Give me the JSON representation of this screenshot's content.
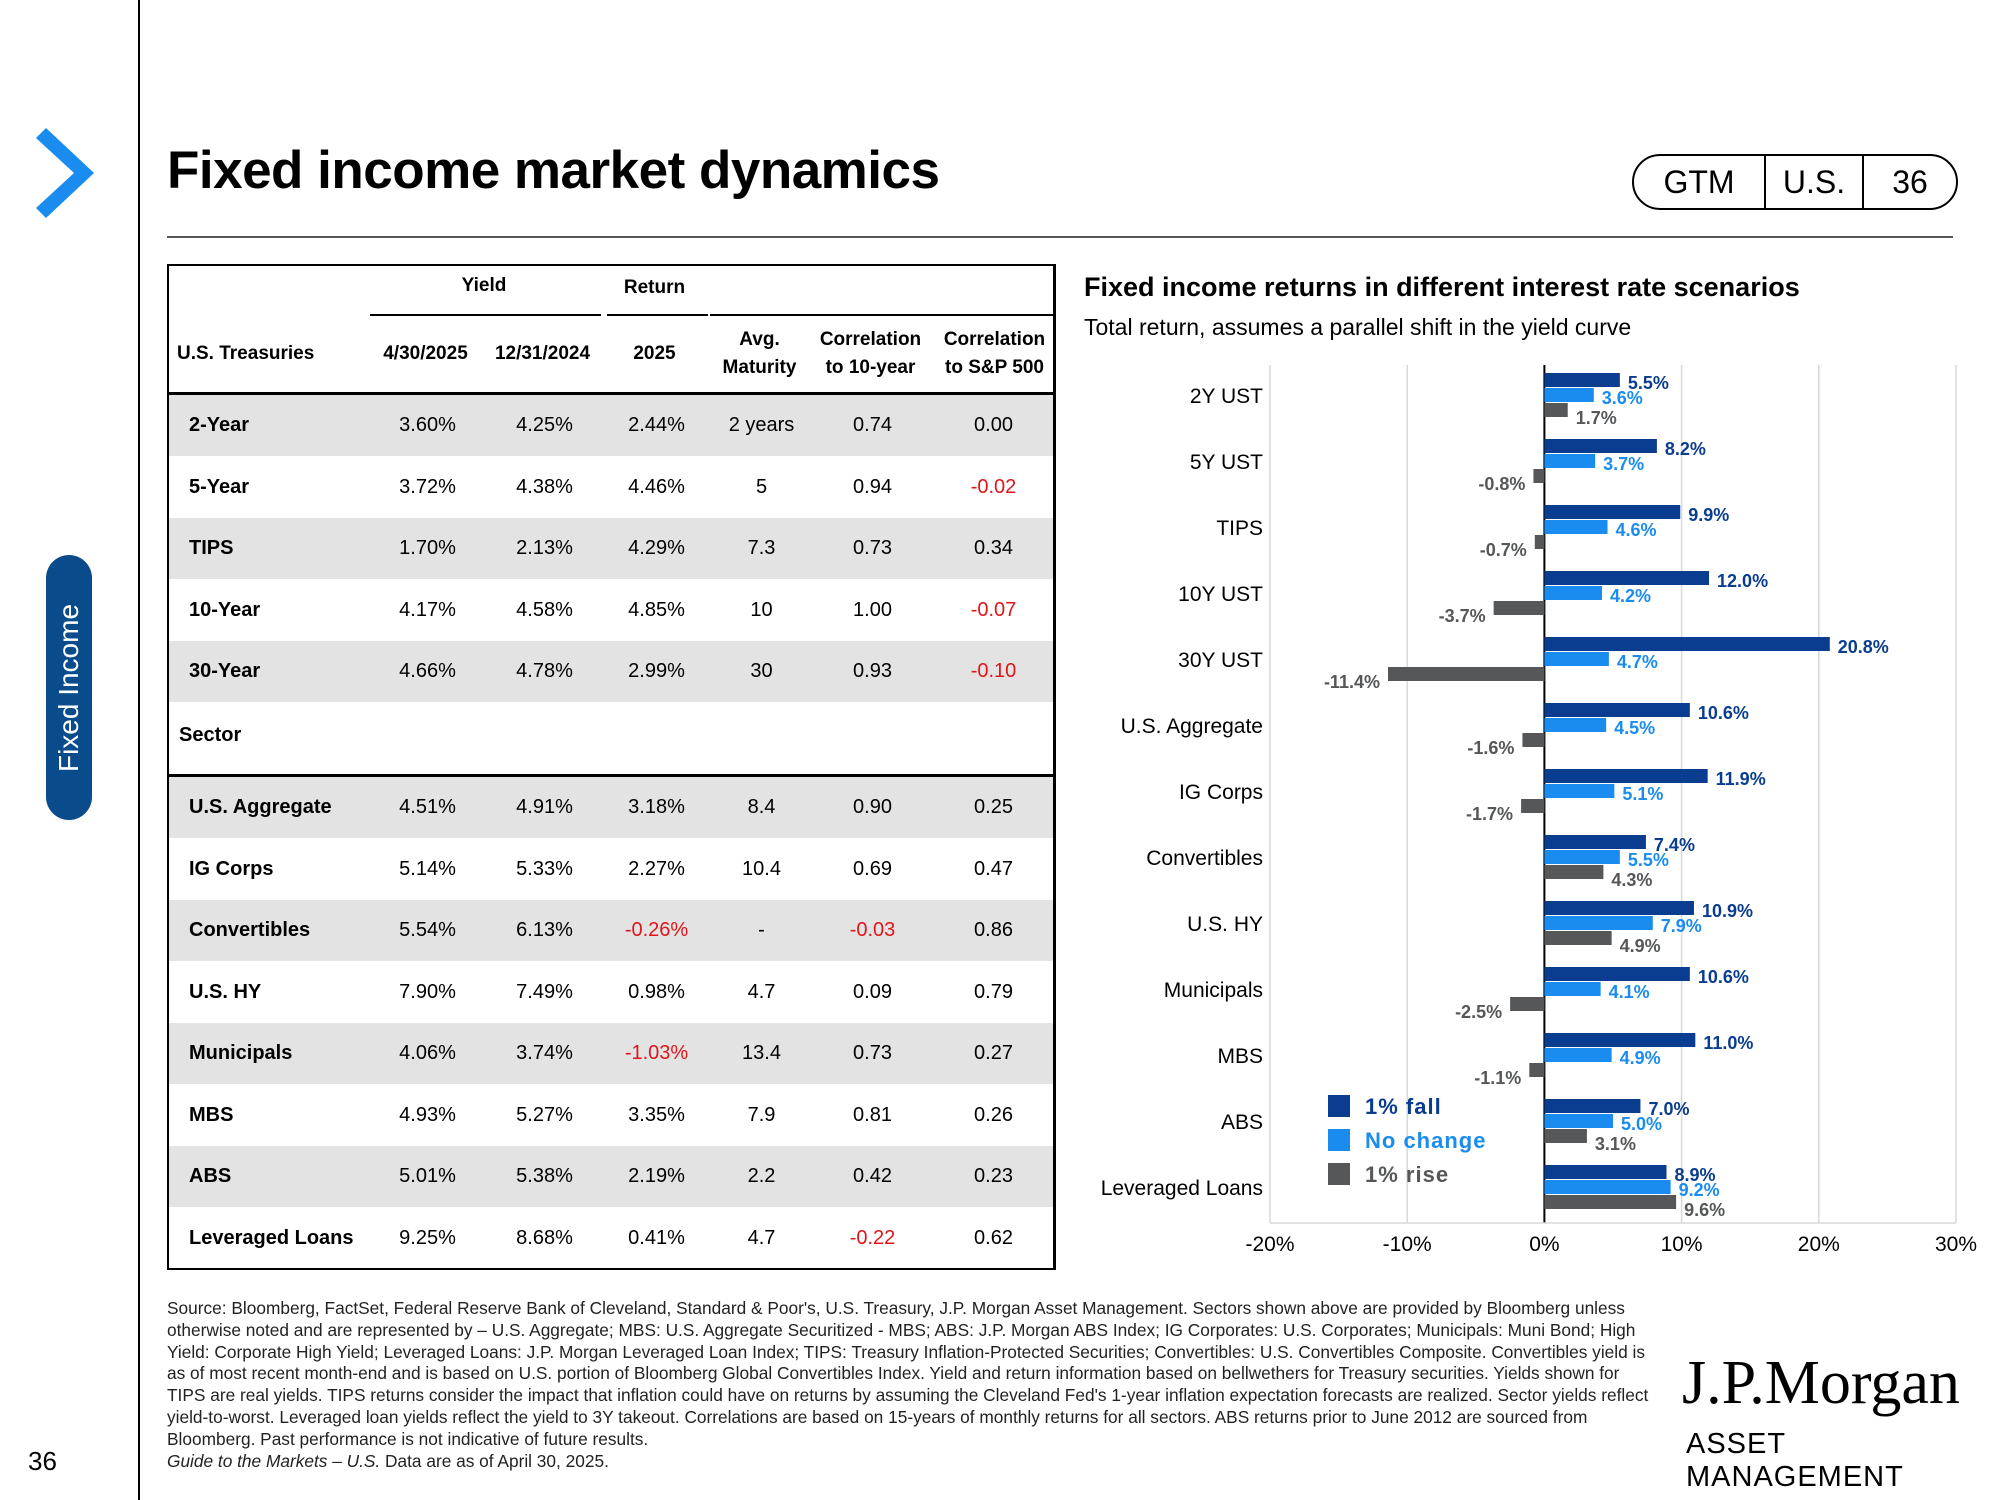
{
  "header": {
    "title": "Fixed income market dynamics",
    "pill": [
      "GTM",
      "U.S.",
      "36"
    ]
  },
  "sidebar": {
    "tab_label": "Fixed Income",
    "page_number": "36"
  },
  "table": {
    "group_headers": {
      "yield": "Yield",
      "return": "Return"
    },
    "columns": [
      "U.S. Treasuries",
      "4/30/2025",
      "12/31/2024",
      "2025",
      "Avg. Maturity",
      "Correlation to 10-year",
      "Correlation to S&P 500"
    ],
    "column_lines": {
      "maturity": [
        "Avg.",
        "Maturity"
      ],
      "corr10": [
        "Correlation",
        "to 10-year"
      ],
      "corrsp": [
        "Correlation",
        "to S&P 500"
      ]
    },
    "treasuries": [
      [
        "2-Year",
        "3.60%",
        "4.25%",
        "2.44%",
        "2 years",
        "0.74",
        "0.00"
      ],
      [
        "5-Year",
        "3.72%",
        "4.38%",
        "4.46%",
        "5",
        "0.94",
        "-0.02"
      ],
      [
        "TIPS",
        "1.70%",
        "2.13%",
        "4.29%",
        "7.3",
        "0.73",
        "0.34"
      ],
      [
        "10-Year",
        "4.17%",
        "4.58%",
        "4.85%",
        "10",
        "1.00",
        "-0.07"
      ],
      [
        "30-Year",
        "4.66%",
        "4.78%",
        "2.99%",
        "30",
        "0.93",
        "-0.10"
      ]
    ],
    "sector_label": "Sector",
    "sectors": [
      [
        "U.S. Aggregate",
        "4.51%",
        "4.91%",
        "3.18%",
        "8.4",
        "0.90",
        "0.25"
      ],
      [
        "IG Corps",
        "5.14%",
        "5.33%",
        "2.27%",
        "10.4",
        "0.69",
        "0.47"
      ],
      [
        "Convertibles",
        "5.54%",
        "6.13%",
        "-0.26%",
        "-",
        "-0.03",
        "0.86"
      ],
      [
        "U.S. HY",
        "7.90%",
        "7.49%",
        "0.98%",
        "4.7",
        "0.09",
        "0.79"
      ],
      [
        "Municipals",
        "4.06%",
        "3.74%",
        "-1.03%",
        "13.4",
        "0.73",
        "0.27"
      ],
      [
        "MBS",
        "4.93%",
        "5.27%",
        "3.35%",
        "7.9",
        "0.81",
        "0.26"
      ],
      [
        "ABS",
        "5.01%",
        "5.38%",
        "2.19%",
        "2.2",
        "0.42",
        "0.23"
      ],
      [
        "Leveraged Loans",
        "9.25%",
        "8.68%",
        "0.41%",
        "4.7",
        "-0.22",
        "0.62"
      ]
    ]
  },
  "chart_data": {
    "type": "bar",
    "orientation": "horizontal",
    "title": "Fixed income returns in different interest rate scenarios",
    "subtitle": "Total return, assumes a parallel shift in the yield curve",
    "categories": [
      "2Y UST",
      "5Y UST",
      "TIPS",
      "10Y UST",
      "30Y UST",
      "U.S. Aggregate",
      "IG Corps",
      "Convertibles",
      "U.S. HY",
      "Municipals",
      "MBS",
      "ABS",
      "Leveraged Loans"
    ],
    "series": [
      {
        "name": "1% fall",
        "color": "#0a3d8f",
        "values": [
          5.5,
          8.2,
          9.9,
          12.0,
          20.8,
          10.6,
          11.9,
          7.4,
          10.9,
          10.6,
          11.0,
          7.0,
          8.9
        ]
      },
      {
        "name": "No change",
        "color": "#1a8cf0",
        "values": [
          3.6,
          3.7,
          4.6,
          4.2,
          4.7,
          4.5,
          5.1,
          5.5,
          7.9,
          4.1,
          4.9,
          5.0,
          9.2
        ]
      },
      {
        "name": "1% rise",
        "color": "#555759",
        "values": [
          1.7,
          -0.8,
          -0.7,
          -3.7,
          -11.4,
          -1.6,
          -1.7,
          4.3,
          4.9,
          -2.5,
          -1.1,
          3.1,
          9.6
        ]
      }
    ],
    "xlim": [
      -20,
      30
    ],
    "xticks": [
      "-20%",
      "-10%",
      "0%",
      "10%",
      "20%",
      "30%"
    ],
    "grid": true,
    "legend_position": "bottom-left"
  },
  "footnote": {
    "text": "Source: Bloomberg, FactSet, Federal Reserve Bank of Cleveland, Standard & Poor's, U.S. Treasury, J.P. Morgan Asset Management. Sectors shown above are provided by Bloomberg unless otherwise noted and are represented by – U.S. Aggregate; MBS: U.S. Aggregate Securitized - MBS; ABS: J.P. Morgan ABS Index; IG Corporates: U.S. Corporates; Municipals: Muni Bond; High Yield: Corporate High Yield; Leveraged Loans: J.P. Morgan Leveraged Loan Index; TIPS: Treasury Inflation-Protected Securities; Convertibles: U.S. Convertibles Composite. Convertibles yield is as of most recent month-end and is based on U.S. portion of Bloomberg Global Convertibles Index. Yield and return information based on bellwethers for Treasury securities. Yields shown for TIPS are real yields. TIPS returns consider the impact that inflation could have on returns by assuming the Cleveland Fed's 1-year inflation expectation forecasts are realized. Sector yields reflect yield-to-worst. Leveraged loan yields reflect the yield to 3Y takeout. Correlations are based on 15-years of monthly returns for all sectors. ABS returns prior to June 2012 are sourced from Bloomberg. Past performance is not indicative of future results.",
    "guide": "Guide to the Markets – U.S.",
    "data_as_of": " Data are as of April 30, 2025."
  },
  "branding": {
    "logo": "J.P.Morgan",
    "sub": "ASSET MANAGEMENT"
  }
}
